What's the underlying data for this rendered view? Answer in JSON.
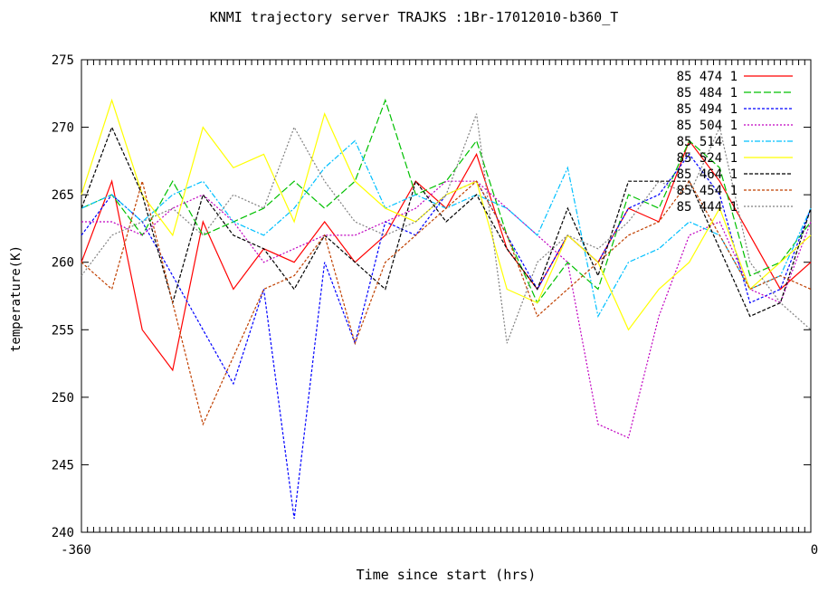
{
  "chart_data": {
    "type": "line",
    "title": "KNMI trajectory server TRAJKS :1Br-17012010-b360_T",
    "xlabel": "Time since start (hrs)",
    "ylabel": "temperature(K)",
    "xlim": [
      -360,
      0
    ],
    "ylim": [
      240,
      275
    ],
    "yticks": [
      240,
      245,
      250,
      255,
      260,
      265,
      270,
      275
    ],
    "xticks_first": "-360",
    "xticks_last": "0",
    "grid": false,
    "legend_position": "top-right",
    "x": [
      -360,
      -345,
      -330,
      -315,
      -300,
      -285,
      -270,
      -255,
      -240,
      -225,
      -210,
      -195,
      -180,
      -165,
      -150,
      -135,
      -120,
      -105,
      -90,
      -75,
      -60,
      -45,
      -30,
      -15,
      0
    ],
    "series": [
      {
        "name": "85 474 1",
        "color": "#ff0000",
        "dash": "",
        "values": [
          260,
          266,
          255,
          252,
          263,
          258,
          261,
          260,
          263,
          260,
          262,
          266,
          264,
          268,
          261,
          258,
          262,
          260,
          264,
          263,
          269,
          266,
          262,
          258,
          260
        ]
      },
      {
        "name": "85 484 1",
        "color": "#00c000",
        "dash": "8,3",
        "values": [
          264,
          265,
          262,
          266,
          262,
          263,
          264,
          266,
          264,
          266,
          272,
          265,
          266,
          269,
          262,
          257,
          260,
          258,
          265,
          264,
          269,
          267,
          259,
          260,
          263
        ]
      },
      {
        "name": "85 494 1",
        "color": "#0000ff",
        "dash": "3,2",
        "values": [
          262,
          265,
          263,
          259,
          255,
          251,
          258,
          241,
          260,
          254,
          263,
          262,
          265,
          266,
          262,
          258,
          262,
          260,
          264,
          265,
          268,
          265,
          257,
          258,
          264
        ]
      },
      {
        "name": "85 504 1",
        "color": "#c000c0",
        "dash": "2,2",
        "values": [
          263,
          263,
          262,
          264,
          265,
          263,
          260,
          261,
          262,
          262,
          263,
          264,
          266,
          266,
          264,
          262,
          260,
          248,
          247,
          256,
          262,
          263,
          258,
          257,
          263
        ]
      },
      {
        "name": "85 514 1",
        "color": "#00c0ff",
        "dash": "6,2,2,2",
        "values": [
          264,
          265,
          263,
          265,
          266,
          263,
          262,
          264,
          267,
          269,
          264,
          265,
          264,
          265,
          264,
          262,
          267,
          256,
          260,
          261,
          263,
          262,
          258,
          259,
          264
        ]
      },
      {
        "name": "85 524 1",
        "color": "#ffff00",
        "dash": "",
        "values": [
          265,
          272,
          265,
          262,
          270,
          267,
          268,
          263,
          271,
          266,
          264,
          263,
          265,
          266,
          258,
          257,
          262,
          260,
          255,
          258,
          260,
          264,
          258,
          260,
          262
        ]
      },
      {
        "name": "85 464 1",
        "color": "#000000",
        "dash": "4,2",
        "values": [
          264,
          270,
          265,
          257,
          265,
          262,
          261,
          258,
          262,
          260,
          258,
          266,
          263,
          265,
          261,
          258,
          264,
          259,
          266,
          266,
          266,
          261,
          256,
          257,
          264
        ]
      },
      {
        "name": "85 454 1",
        "color": "#c04000",
        "dash": "3,2",
        "values": [
          260,
          258,
          266,
          257,
          248,
          253,
          258,
          259,
          262,
          254,
          260,
          262,
          264,
          266,
          262,
          256,
          258,
          260,
          262,
          263,
          266,
          262,
          258,
          259,
          258
        ]
      },
      {
        "name": "85 444 1",
        "color": "#808080",
        "dash": "2,2",
        "values": [
          259,
          262,
          263,
          264,
          262,
          265,
          264,
          270,
          266,
          263,
          262,
          263,
          265,
          271,
          254,
          260,
          262,
          261,
          263,
          266,
          265,
          270,
          260,
          257,
          255
        ]
      }
    ]
  }
}
